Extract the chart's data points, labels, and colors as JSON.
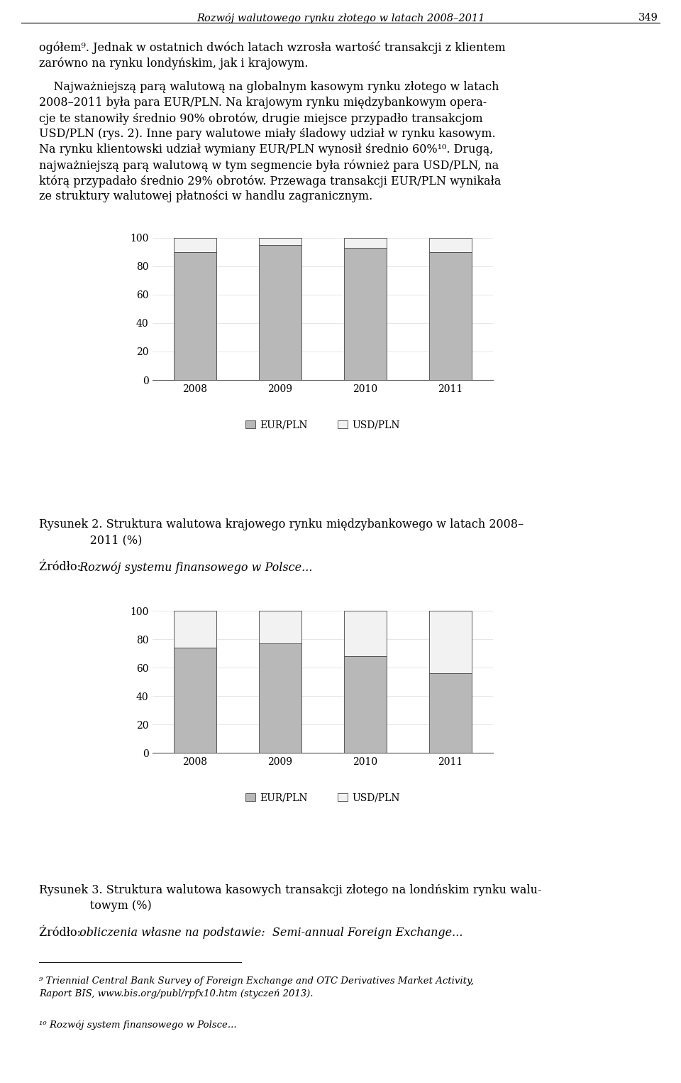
{
  "years": [
    "2008",
    "2009",
    "2010",
    "2011"
  ],
  "chart1": {
    "eur_pln": [
      90,
      95,
      93,
      90
    ],
    "usd_pln": [
      10,
      5,
      7,
      10
    ]
  },
  "chart2": {
    "eur_pln": [
      74,
      77,
      68,
      56
    ],
    "usd_pln": [
      26,
      23,
      32,
      44
    ]
  },
  "bar_color_eur": "#b8b8b8",
  "bar_color_usd": "#f2f2f2",
  "bar_edge_color": "#444444",
  "bar_width": 0.5,
  "ylim": [
    0,
    100
  ],
  "yticks": [
    0,
    20,
    40,
    60,
    80,
    100
  ],
  "legend_eur": "EUR/PLN",
  "legend_usd": "USD/PLN",
  "page_header": "Rozwój walutowego rynku złotego w latach 2008–2011",
  "page_number": "349",
  "body_line1": "ogółem",
  "body_line1b": ". Jednak w ostatnich dwóch latach wzrosła wartość transakcji z klientem",
  "body_line2": "zarówno na rynku londńskim, jak i krajowym.",
  "body_para2": "    Najważniejszą parą walutową na globalnym kasowym rynku złotego w latach",
  "body_line4": "2008–2011 była para EUR/PLN. Na krajowym rynku międzybankowym opera-",
  "body_line5": "cje te stanowiły średnio 90% obrotów, drugie miejsce przypadło transakcjom",
  "body_line6": "USD/PLN (rys. 2). Inne pary walutowe miały śladowy udział w rynku kasowym.",
  "body_line7": "Na rynku klientowski udział wymiany EUR/PLN wynosił średnio 60%",
  "body_line7b": ". Drugą,",
  "body_line8": "najważniejszą parą walutową w tym segmencie była również para USD/PLN, na",
  "body_line9": "którą przypadąło średnio 29% obrotów. Przewaga transakcji EUR/PLN wynikała",
  "body_line10": "ze struktury walutowej płatności w handlu zagranicznym.",
  "cap1_line1": "Rysunek 2. Struktura walutowa krajowego rynku międzybankowego w latach 2008–",
  "cap1_line2": "              2011 (%)",
  "src1": "Źródło: ",
  "src1_italic": " Rozwój systemu finansowego w Polsce...",
  "cap2_line1": "Rysunek 3. Struktura walutowa kasowych transakcji złotego na londńskim rynku walu-",
  "cap2_line2": "              towym (%)",
  "src2": "Źródło: ",
  "src2_italic": " obliczenia własne na podstawie:  Semi-annual Foreign Exchange...",
  "footnote_9_normal": " Triennial Central Bank Survey of Foreign Exchange and OTC Derivatives Market Activity,",
  "footnote_9_line2": "Raport BIS, www.bis.org/publ/rpfx10.htm (styczeń 2013).",
  "footnote_10_normal": " Rozwój system finansowego w Polsce...",
  "sup9": "⁹",
  "sup10": "¹⁰"
}
